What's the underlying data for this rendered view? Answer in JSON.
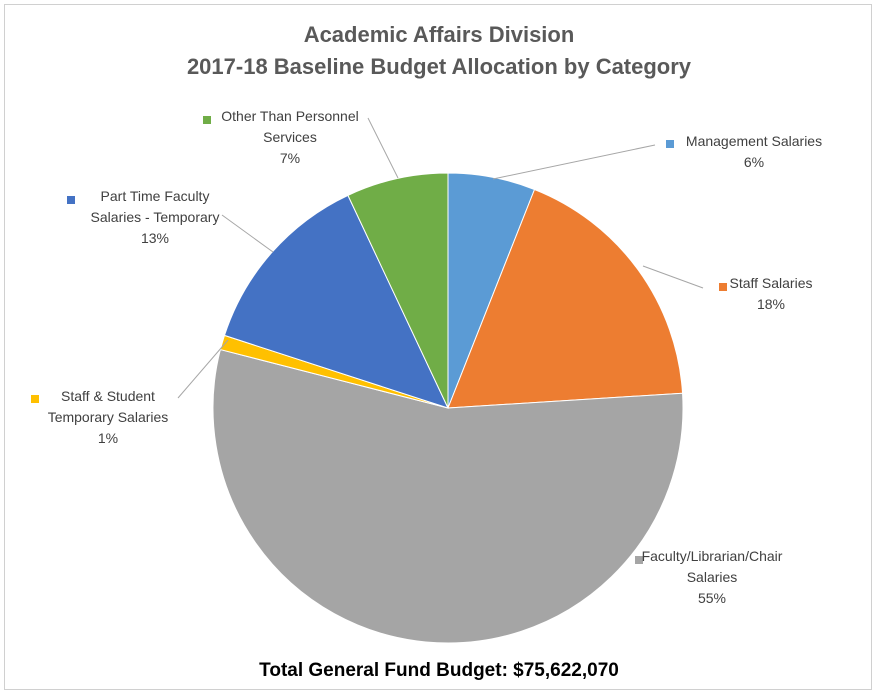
{
  "chart_data": {
    "type": "pie",
    "title": "Academic Affairs Division",
    "subtitle": "2017-18 Baseline Budget Allocation by Category",
    "footer": "Total General Fund Budget:  $75,622,070",
    "slices": [
      {
        "name": "Management Salaries",
        "value": 6,
        "label": "6%",
        "color": "#5B9BD5",
        "lines": [
          "Management Salaries",
          "6%"
        ]
      },
      {
        "name": "Staff Salaries",
        "value": 18,
        "label": "18%",
        "color": "#ED7D31",
        "lines": [
          "Staff Salaries",
          "18%"
        ]
      },
      {
        "name": "Faculty/Librarian/Chair Salaries",
        "value": 55,
        "label": "55%",
        "color": "#A5A5A5",
        "lines": [
          "Faculty/Librarian/Chair",
          "Salaries",
          "55%"
        ]
      },
      {
        "name": "Staff & Student Temporary Salaries",
        "value": 1,
        "label": "1%",
        "color": "#FFC000",
        "lines": [
          "Staff & Student",
          "Temporary Salaries",
          "1%"
        ]
      },
      {
        "name": "Part Time Faculty Salaries - Temporary",
        "value": 13,
        "label": "13%",
        "color": "#4472C4",
        "lines": [
          "Part Time Faculty",
          "Salaries - Temporary",
          "13%"
        ]
      },
      {
        "name": "Other Than Personnel Services",
        "value": 7,
        "label": "7%",
        "color": "#70AD47",
        "lines": [
          "Other Than Personnel",
          "Services",
          "7%"
        ]
      }
    ]
  }
}
